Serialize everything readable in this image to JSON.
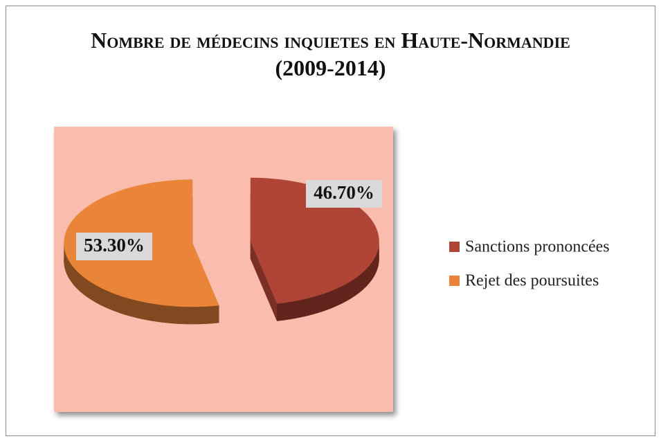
{
  "chart_data": {
    "type": "pie",
    "title": "Nombre de médecins inquietes en Haute-Normandie (2009-2014)",
    "categories": [
      "Sanctions prononcées",
      "Rejet des poursuites"
    ],
    "values": [
      46.7,
      53.3
    ],
    "value_labels": [
      "46.70%",
      "53.30%"
    ],
    "colors": [
      "#b04437",
      "#ea8438"
    ],
    "legend": "right"
  }
}
